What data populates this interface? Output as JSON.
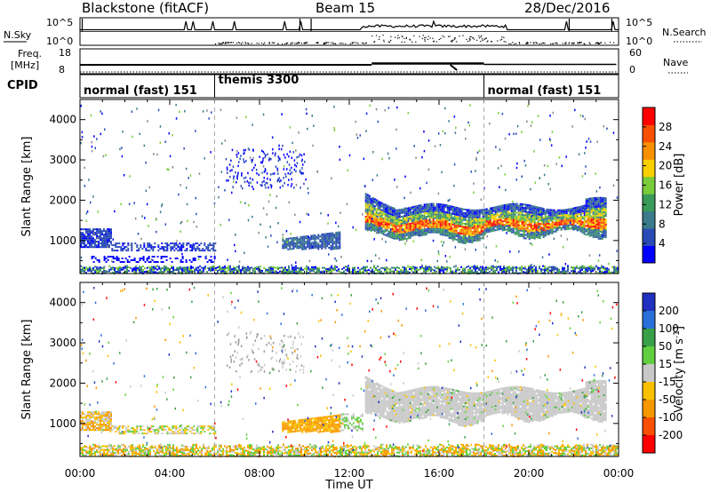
{
  "header": {
    "station": "Blackstone (fitACF)",
    "beam": "Beam 15",
    "date": "28/Dec/2016"
  },
  "noise_panel": {
    "left_label": "N.Sky",
    "right_label": "N.Search",
    "ticks_left": [
      "10^5",
      "10^0"
    ],
    "ticks_right": [
      "10^5",
      "10^0"
    ]
  },
  "freq_panel": {
    "left_label_1": "Freq.",
    "left_label_2": "[MHz]",
    "right_label": "Nave",
    "ticks_left": [
      "18",
      "8"
    ],
    "ticks_right": [
      "60",
      "0"
    ]
  },
  "cpid_panel": {
    "label": "CPID",
    "segments": [
      {
        "name": "normal (fast) 151",
        "start_h": 0,
        "end_h": 6
      },
      {
        "name": "themis 3300",
        "start_h": 6,
        "end_h": 18
      },
      {
        "name": "normal (fast) 151",
        "start_h": 18,
        "end_h": 24
      }
    ]
  },
  "colors": {
    "power": [
      "#0000ff",
      "#2a4ab8",
      "#3a7a8a",
      "#3a9a5a",
      "#7acc3a",
      "#f8d000",
      "#f89000",
      "#f85000",
      "#ff0000"
    ],
    "velocity": [
      "#2030c0",
      "#2870d8",
      "#38a048",
      "#60d040",
      "#c8c8c8",
      "#f8c000",
      "#f89800",
      "#f85000",
      "#ff0000"
    ]
  },
  "chart_data": [
    {
      "type": "heatmap",
      "name": "power",
      "xlabel": "",
      "ylabel": "Slant Range [km]",
      "xlim_hours": [
        0,
        24
      ],
      "ylim_km": [
        180,
        4500
      ],
      "yticks": [
        1000,
        2000,
        3000,
        4000
      ],
      "colorbar_label": "Power [dB]",
      "colorbar_ticks": [
        "28",
        "24",
        "20",
        "16",
        "12",
        "8",
        "4"
      ],
      "colorbar_range": [
        0,
        32
      ],
      "features": [
        {
          "region": "near-range ground scatter band",
          "t": [
            0,
            24
          ],
          "range_km": [
            200,
            400
          ],
          "level": "mixed"
        },
        {
          "region": "early band 1",
          "t": [
            0,
            1.5
          ],
          "range_km": [
            800,
            1300
          ],
          "level": "8"
        },
        {
          "region": "early band 2",
          "t": [
            1.5,
            6
          ],
          "range_km": [
            750,
            950
          ],
          "level": "8"
        },
        {
          "region": "mid patch",
          "t": [
            9,
            11.6
          ],
          "range_km": [
            800,
            1200
          ],
          "level": "8"
        },
        {
          "region": "diagonal streak",
          "t": [
            6.5,
            10
          ],
          "range_km": [
            2300,
            3300
          ],
          "level": "4"
        },
        {
          "region": "main band",
          "t": [
            12.7,
            23.4
          ],
          "range_km": [
            1100,
            2200
          ],
          "level": "20-28"
        }
      ]
    },
    {
      "type": "heatmap",
      "name": "velocity",
      "xlabel": "Time UT",
      "ylabel": "Slant Range [km]",
      "xlim_hours": [
        0,
        24
      ],
      "ylim_km": [
        180,
        4500
      ],
      "yticks": [
        1000,
        2000,
        3000,
        4000
      ],
      "xticks": [
        "00:00",
        "04:00",
        "08:00",
        "12:00",
        "16:00",
        "20:00",
        "00:00"
      ],
      "colorbar_label": "Velocity [m s^-1]",
      "colorbar_ticks": [
        "200",
        "100",
        "50",
        "15",
        "-15",
        "-50",
        "-100",
        "-200"
      ],
      "features": [
        {
          "region": "near-range band",
          "t": [
            0,
            24
          ],
          "range_km": [
            200,
            500
          ],
          "level": "-50"
        },
        {
          "region": "early band",
          "t": [
            0,
            6
          ],
          "range_km": [
            750,
            1300
          ],
          "level": "-15 to -50"
        },
        {
          "region": "mid patch",
          "t": [
            9,
            12
          ],
          "range_km": [
            800,
            1200
          ],
          "level": "-50"
        },
        {
          "region": "main band",
          "t": [
            12.7,
            23.4
          ],
          "range_km": [
            1100,
            2200
          ],
          "level": "15 to -15"
        }
      ]
    }
  ]
}
